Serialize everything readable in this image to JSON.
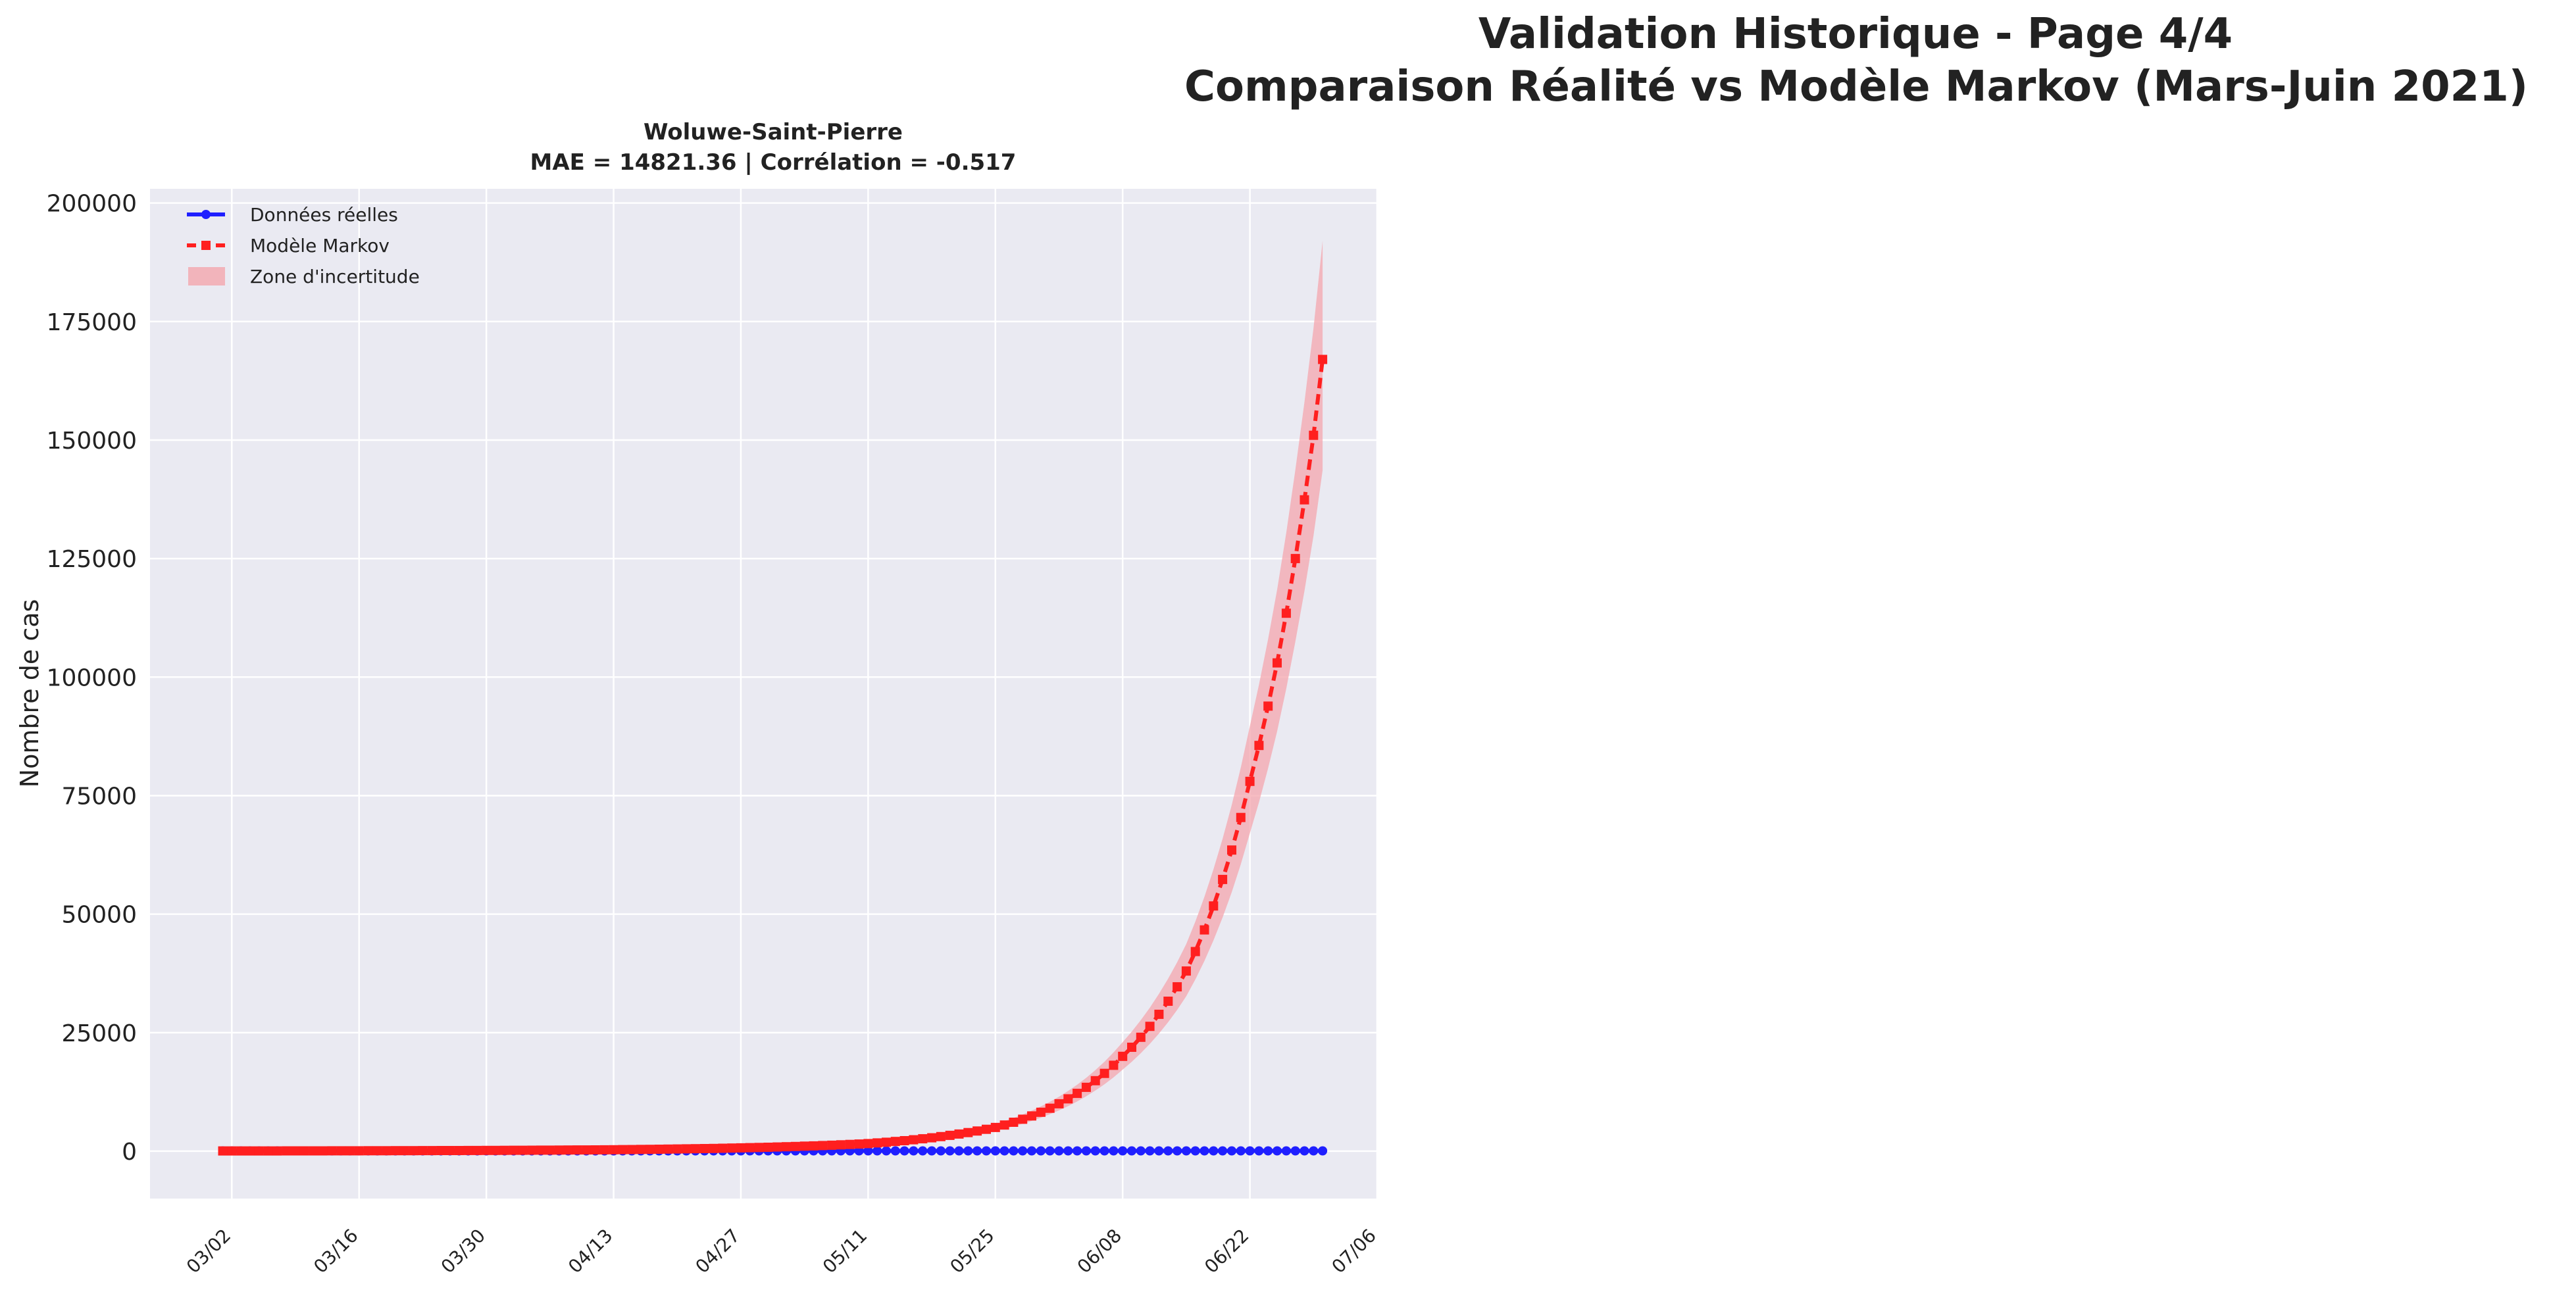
{
  "suptitle": {
    "line1": "Validation Historique - Page 4/4",
    "line2": "Comparaison Réalité vs Modèle Markov (Mars-Juin 2021)"
  },
  "chart_data": {
    "type": "line",
    "title_line1": "Woluwe-Saint-Pierre",
    "title_line2": "MAE = 14821.36 | Corrélation = -0.517",
    "xlabel": "",
    "ylabel": "Nombre de cas",
    "ylim": [
      -10000,
      203000
    ],
    "yticks": [
      0,
      25000,
      50000,
      75000,
      100000,
      125000,
      150000,
      175000,
      200000
    ],
    "xlim": [
      "2021-02-21",
      "2021-07-06"
    ],
    "xticks": [
      {
        "date": "2021-03-02",
        "label": "03/02"
      },
      {
        "date": "2021-03-16",
        "label": "03/16"
      },
      {
        "date": "2021-03-30",
        "label": "03/30"
      },
      {
        "date": "2021-04-13",
        "label": "04/13"
      },
      {
        "date": "2021-04-27",
        "label": "04/27"
      },
      {
        "date": "2021-05-11",
        "label": "05/11"
      },
      {
        "date": "2021-05-25",
        "label": "05/25"
      },
      {
        "date": "2021-06-08",
        "label": "06/08"
      },
      {
        "date": "2021-06-22",
        "label": "06/22"
      },
      {
        "date": "2021-07-06",
        "label": "07/06"
      }
    ],
    "grid": true,
    "legend_position": "upper-left",
    "series": [
      {
        "name": "Données réelles",
        "color": "#1f1fff",
        "style": "solid",
        "marker": "circle",
        "start": "2021-03-01",
        "end": "2021-06-30",
        "constant_value": 60
      },
      {
        "name": "Modèle Markov",
        "color": "#ff1f1f",
        "style": "dashed",
        "marker": "square",
        "start": "2021-03-01",
        "end": "2021-06-30",
        "anchors": [
          {
            "date": "2021-03-01",
            "value": 40
          },
          {
            "date": "2021-04-13",
            "value": 300
          },
          {
            "date": "2021-05-11",
            "value": 1600
          },
          {
            "date": "2021-05-25",
            "value": 5000
          },
          {
            "date": "2021-06-08",
            "value": 20000
          },
          {
            "date": "2021-06-15",
            "value": 38000
          },
          {
            "date": "2021-06-22",
            "value": 78000
          },
          {
            "date": "2021-06-25",
            "value": 103000
          },
          {
            "date": "2021-06-27",
            "value": 125000
          },
          {
            "date": "2021-06-29",
            "value": 151000
          },
          {
            "date": "2021-06-30",
            "value": 167000
          }
        ]
      }
    ],
    "band": {
      "name": "Zone d'incertitude",
      "color": "#f4a6ad",
      "lower_factor": 0.86,
      "upper_factor": 1.15
    }
  }
}
